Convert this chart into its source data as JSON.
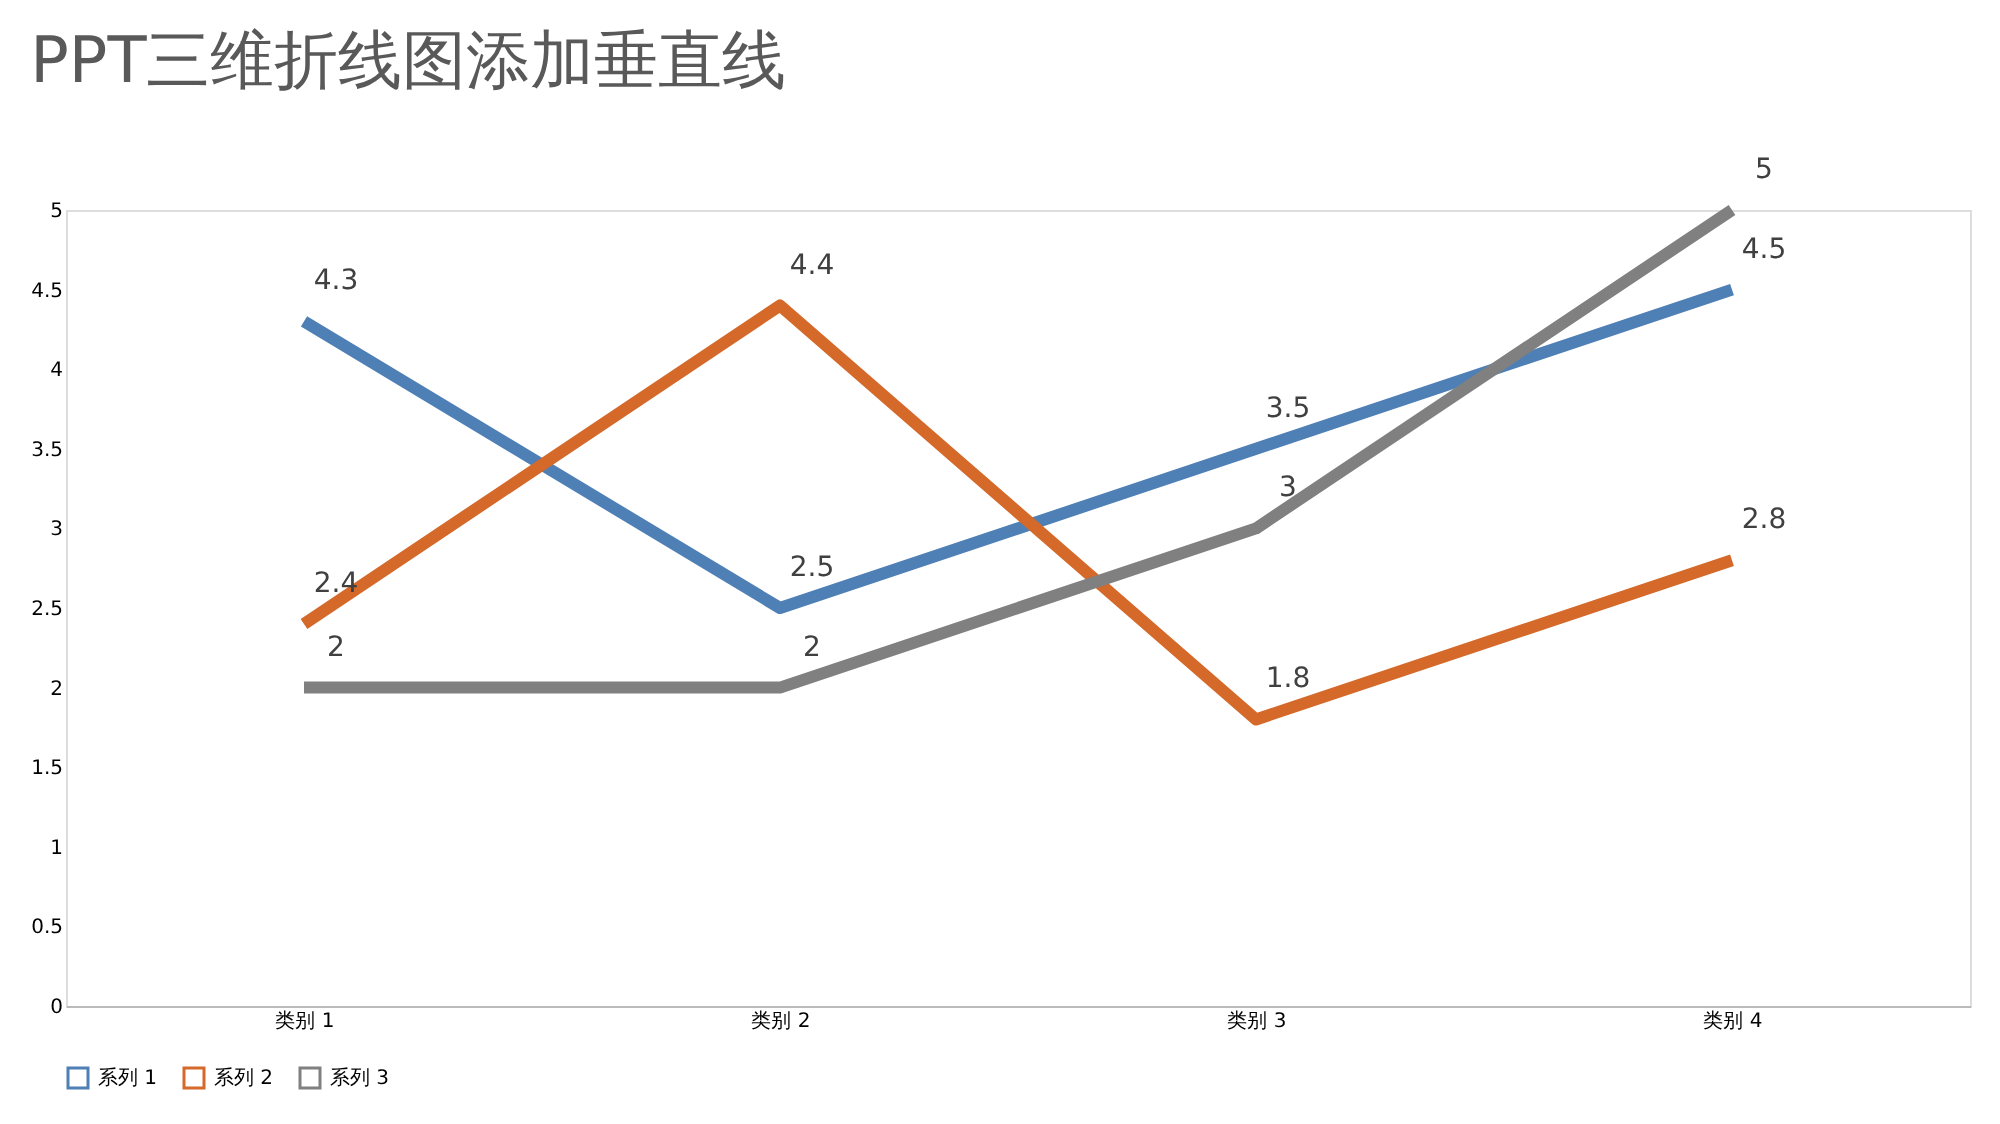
{
  "chart_data": {
    "type": "line",
    "title": "PPT三维折线图添加垂直线",
    "categories": [
      "类别 1",
      "类别 2",
      "类别 3",
      "类别 4"
    ],
    "series": [
      {
        "name": "系列 1",
        "color": "#4e7fb5",
        "values": [
          4.3,
          2.5,
          3.5,
          4.5
        ]
      },
      {
        "name": "系列 2",
        "color": "#d4692a",
        "values": [
          2.4,
          4.4,
          1.8,
          2.8
        ]
      },
      {
        "name": "系列 3",
        "color": "#808080",
        "values": [
          2,
          2,
          3,
          5
        ]
      }
    ],
    "ylim": [
      0,
      5
    ],
    "yticks": [
      0,
      0.5,
      1,
      1.5,
      2,
      2.5,
      3,
      3.5,
      4,
      4.5,
      5
    ],
    "grid": false,
    "legend": "bottom",
    "data_labels": true,
    "marker": "none",
    "line_style": "solid"
  }
}
